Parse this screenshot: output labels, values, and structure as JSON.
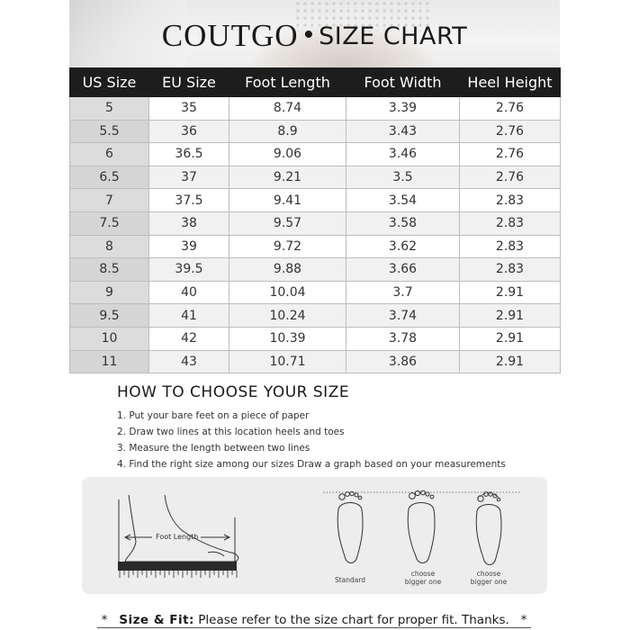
{
  "header": {
    "brand": "COUTGO",
    "separator": "•",
    "subtitle": "SIZE CHART"
  },
  "table": {
    "columns": [
      "US Size",
      "EU Size",
      "Foot Length",
      "Foot Width",
      "Heel Height"
    ],
    "rows": [
      [
        "5",
        "35",
        "8.74",
        "3.39",
        "2.76"
      ],
      [
        "5.5",
        "36",
        "8.9",
        "3.43",
        "2.76"
      ],
      [
        "6",
        "36.5",
        "9.06",
        "3.46",
        "2.76"
      ],
      [
        "6.5",
        "37",
        "9.21",
        "3.5",
        "2.76"
      ],
      [
        "7",
        "37.5",
        "9.41",
        "3.54",
        "2.83"
      ],
      [
        "7.5",
        "38",
        "9.57",
        "3.58",
        "2.83"
      ],
      [
        "8",
        "39",
        "9.72",
        "3.62",
        "2.83"
      ],
      [
        "8.5",
        "39.5",
        "9.88",
        "3.66",
        "2.83"
      ],
      [
        "9",
        "40",
        "10.04",
        "3.7",
        "2.91"
      ],
      [
        "9.5",
        "41",
        "10.24",
        "3.74",
        "2.91"
      ],
      [
        "10",
        "42",
        "10.39",
        "3.78",
        "2.91"
      ],
      [
        "11",
        "43",
        "10.71",
        "3.86",
        "2.91"
      ]
    ]
  },
  "guide": {
    "title": "HOW TO CHOOSE YOUR SIZE",
    "steps": [
      "1. Put your bare feet on a piece of paper",
      "2. Draw two lines at this location heels and toes",
      "3. Measure the length between two lines",
      "4. Find the right size among our sizes Draw a graph based on your measurements"
    ],
    "illustration": {
      "foot_length_label": "Foot Length",
      "foot_labels": [
        [
          "Standard"
        ],
        [
          "choose",
          "bigger one"
        ],
        [
          "choose",
          "bigger one"
        ]
      ]
    }
  },
  "footer": {
    "star": "*",
    "label": "Size & Fit:",
    "text": "Please refer to the size chart for proper fit. Thanks."
  }
}
